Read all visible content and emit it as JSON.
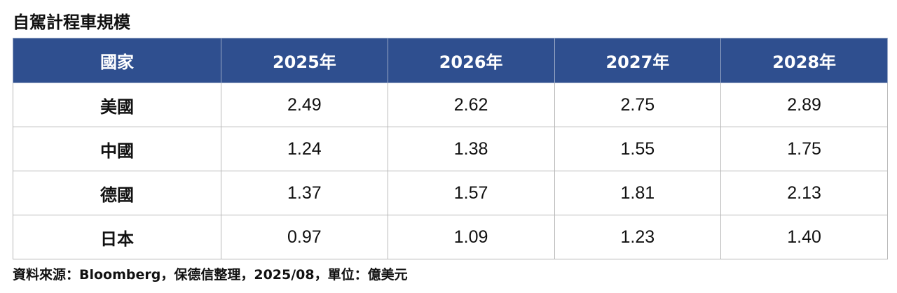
{
  "title": "自駕計程車規模",
  "source": "資料來源：Bloomberg，保德信整理，2025/08，單位：億美元",
  "colors": {
    "header_bg": "#2f4f8f",
    "header_text": "#ffffff",
    "grid": "#b8b8b8"
  },
  "chart_data": {
    "type": "table",
    "title": "自駕計程車規模",
    "columns": [
      "國家",
      "2025年",
      "2026年",
      "2027年",
      "2028年"
    ],
    "rows": [
      [
        "美國",
        "2.49",
        "2.62",
        "2.75",
        "2.89"
      ],
      [
        "中國",
        "1.24",
        "1.38",
        "1.55",
        "1.75"
      ],
      [
        "德國",
        "1.37",
        "1.57",
        "1.81",
        "2.13"
      ],
      [
        "日本",
        "0.97",
        "1.09",
        "1.23",
        "1.40"
      ]
    ],
    "unit": "億美元"
  }
}
